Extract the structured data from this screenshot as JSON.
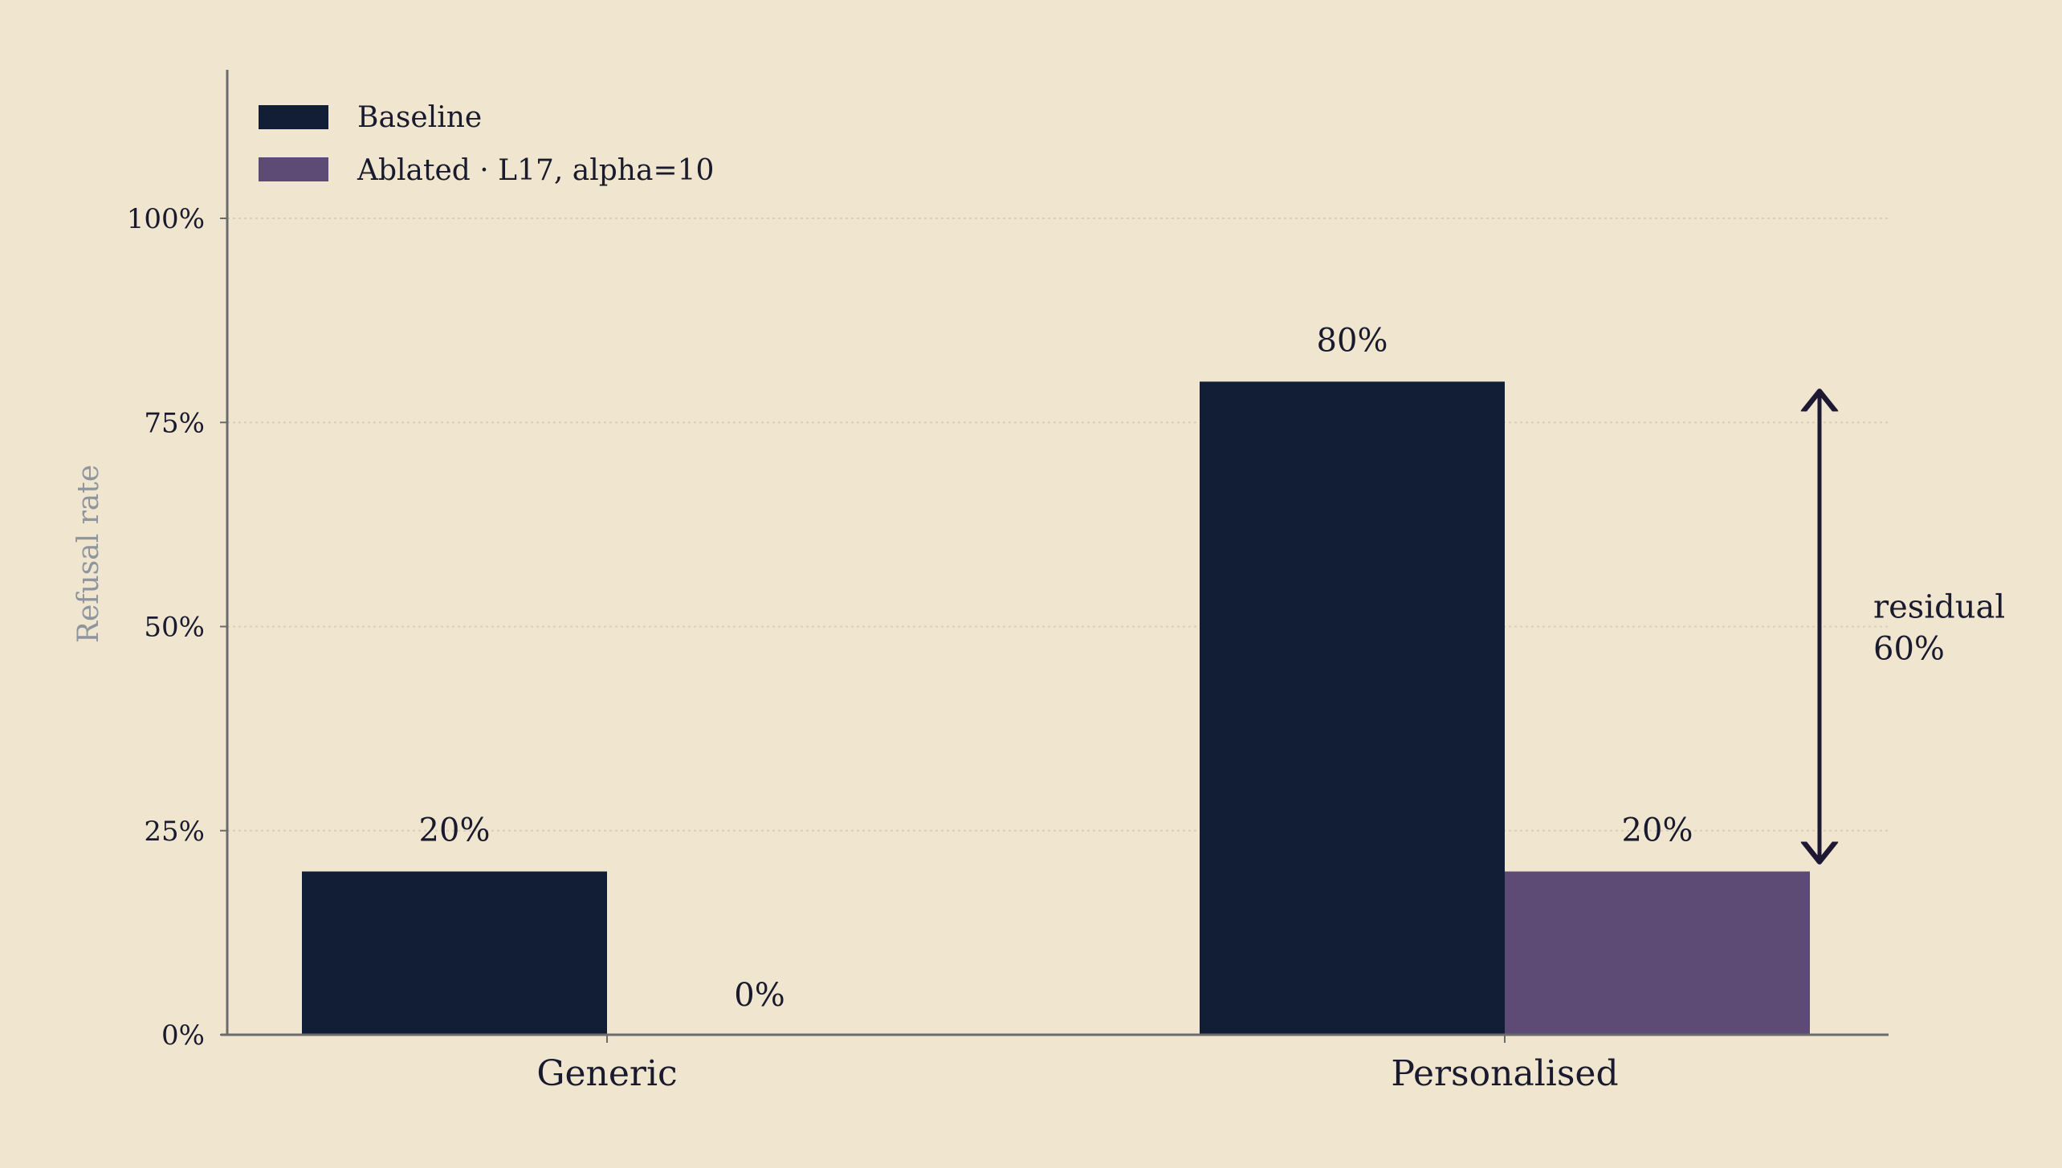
{
  "chart_data": {
    "type": "bar",
    "categories": [
      "Generic",
      "Personalised"
    ],
    "series": [
      {
        "name": "Baseline",
        "values": [
          20,
          80
        ],
        "labels": [
          "20%",
          "80%"
        ],
        "color": "#111e36"
      },
      {
        "name": "Ablated · L17, alpha=10",
        "values": [
          0,
          20
        ],
        "labels": [
          "0%",
          "20%"
        ],
        "color": "#5d4b76"
      }
    ],
    "ylabel": "Refusal rate",
    "ylim": [
      0,
      100
    ],
    "yticks": [
      0,
      25,
      50,
      75,
      100
    ],
    "ytick_labels": [
      "0%",
      "25%",
      "50%",
      "75%",
      "100%"
    ],
    "grid": "horizontal-dotted",
    "legend": "top-left",
    "annotation": {
      "category": "Personalised",
      "from": 20,
      "to": 80,
      "line1": "residual",
      "line2": "60%"
    },
    "colors": {
      "background": "#f0e6d0",
      "axis": "#6b6b6b",
      "grid": "#d9cfb9",
      "arrow": "#1f1833",
      "ylabel": "#8f959d"
    }
  }
}
